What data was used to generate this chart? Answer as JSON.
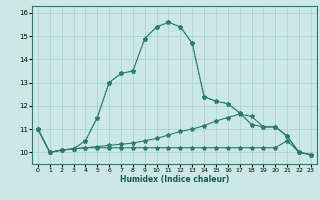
{
  "title": "",
  "xlabel": "Humidex (Indice chaleur)",
  "bg_color": "#cce8e4",
  "grid_color": "#aad4d0",
  "line_color": "#2a7d6b",
  "xlim": [
    -0.5,
    23.5
  ],
  "ylim": [
    9.5,
    16.3
  ],
  "yticks": [
    10,
    11,
    12,
    13,
    14,
    15,
    16
  ],
  "xticks": [
    0,
    1,
    2,
    3,
    4,
    5,
    6,
    7,
    8,
    9,
    10,
    11,
    12,
    13,
    14,
    15,
    16,
    17,
    18,
    19,
    20,
    21,
    22,
    23
  ],
  "series": [
    {
      "x": [
        0,
        1,
        2,
        3,
        4,
        5,
        6,
        7,
        8,
        9,
        10,
        11,
        12,
        13,
        14,
        15,
        16,
        17,
        18,
        19,
        20,
        21,
        22,
        23
      ],
      "y": [
        11.0,
        10.0,
        10.1,
        10.15,
        10.5,
        11.5,
        13.0,
        13.4,
        13.5,
        14.9,
        15.4,
        15.6,
        15.4,
        14.7,
        12.4,
        12.2,
        12.1,
        11.7,
        11.2,
        11.1,
        11.1,
        10.7,
        10.0,
        9.9
      ],
      "linestyle": "solid"
    },
    {
      "x": [
        0,
        1,
        2,
        3,
        4,
        5,
        6,
        7,
        8,
        9,
        10,
        11,
        12,
        13,
        14,
        15,
        16,
        17,
        18,
        19,
        20,
        21,
        22,
        23
      ],
      "y": [
        11.0,
        10.0,
        10.1,
        10.15,
        10.5,
        11.5,
        13.0,
        13.4,
        13.5,
        14.9,
        15.4,
        15.6,
        15.4,
        14.7,
        12.4,
        12.2,
        12.1,
        11.7,
        11.2,
        11.1,
        11.1,
        10.7,
        10.0,
        9.9
      ],
      "linestyle": "dotted"
    },
    {
      "x": [
        0,
        1,
        2,
        3,
        4,
        5,
        6,
        7,
        8,
        9,
        10,
        11,
        12,
        13,
        14,
        15,
        16,
        17,
        18,
        19,
        20,
        21,
        22,
        23
      ],
      "y": [
        11.0,
        10.0,
        10.1,
        10.15,
        10.2,
        10.25,
        10.3,
        10.35,
        10.4,
        10.5,
        10.6,
        10.75,
        10.9,
        11.0,
        11.15,
        11.35,
        11.5,
        11.65,
        11.55,
        11.1,
        11.1,
        10.7,
        10.0,
        9.9
      ],
      "linestyle": "solid"
    },
    {
      "x": [
        0,
        1,
        2,
        3,
        4,
        5,
        6,
        7,
        8,
        9,
        10,
        11,
        12,
        13,
        14,
        15,
        16,
        17,
        18,
        19,
        20,
        21,
        22,
        23
      ],
      "y": [
        11.0,
        10.0,
        10.1,
        10.15,
        10.2,
        10.2,
        10.2,
        10.2,
        10.2,
        10.2,
        10.2,
        10.2,
        10.2,
        10.2,
        10.2,
        10.2,
        10.2,
        10.2,
        10.2,
        10.2,
        10.2,
        10.5,
        10.0,
        9.9
      ],
      "linestyle": "solid"
    }
  ]
}
